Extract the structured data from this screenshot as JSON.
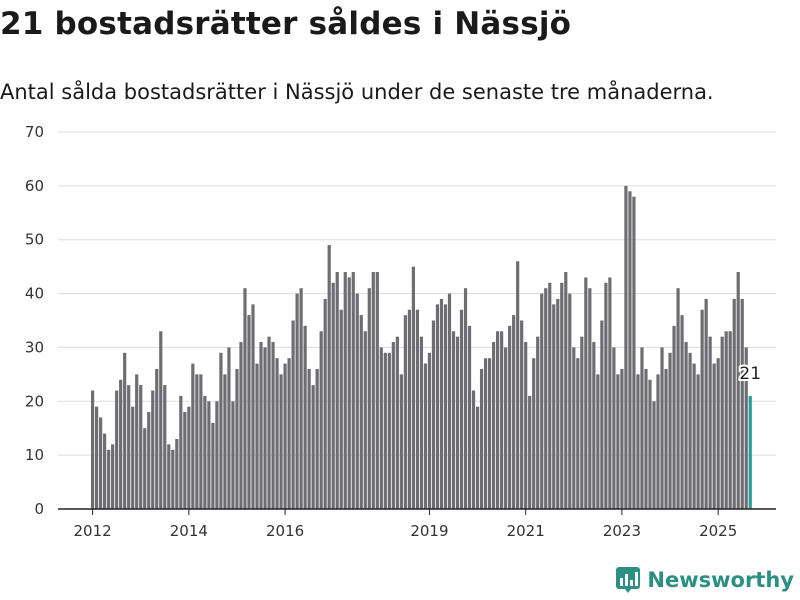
{
  "title": "21 bostadsrätter såldes i Nässjö",
  "subtitle": "Antal sålda bostadsrätter i Nässjö under de senaste tre månaderna.",
  "brand": {
    "name": "Newsworthy",
    "color": "#2d8f83",
    "icon": "newsworthy-logo-icon"
  },
  "chart_data": {
    "type": "bar",
    "start": "2012-01",
    "values": [
      22,
      19,
      17,
      14,
      11,
      12,
      22,
      24,
      29,
      23,
      19,
      25,
      23,
      15,
      18,
      22,
      26,
      33,
      23,
      12,
      11,
      13,
      21,
      18,
      19,
      27,
      25,
      25,
      21,
      20,
      16,
      20,
      29,
      25,
      30,
      20,
      26,
      31,
      41,
      36,
      38,
      27,
      31,
      30,
      32,
      31,
      28,
      25,
      27,
      28,
      35,
      40,
      41,
      34,
      26,
      23,
      26,
      33,
      39,
      49,
      42,
      44,
      37,
      44,
      43,
      44,
      40,
      36,
      33,
      41,
      44,
      44,
      30,
      29,
      29,
      31,
      32,
      25,
      36,
      37,
      45,
      37,
      32,
      27,
      29,
      35,
      38,
      39,
      38,
      40,
      33,
      32,
      37,
      41,
      34,
      22,
      19,
      26,
      28,
      28,
      31,
      33,
      33,
      30,
      34,
      36,
      46,
      35,
      31,
      21,
      28,
      32,
      40,
      41,
      42,
      38,
      39,
      42,
      44,
      40,
      30,
      28,
      32,
      43,
      41,
      31,
      25,
      35,
      42,
      43,
      30,
      25,
      26,
      60,
      59,
      58,
      25,
      30,
      26,
      24,
      20,
      25,
      30,
      26,
      29,
      34,
      41,
      36,
      31,
      29,
      27,
      25,
      37,
      39,
      32,
      27,
      28,
      32,
      33,
      33,
      39,
      44,
      39,
      30,
      21
    ],
    "highlight_last": true,
    "last_label": "21",
    "x_ticks": [
      "2012",
      "2014",
      "2016",
      "2019",
      "2021",
      "2023",
      "2025"
    ],
    "x_tick_years": [
      2012,
      2014,
      2016,
      2019,
      2021,
      2023,
      2025
    ],
    "y_ticks": [
      0,
      10,
      20,
      30,
      40,
      50,
      60,
      70
    ],
    "ylim": [
      0,
      70
    ],
    "grid": true,
    "colors": {
      "bar": "#6e6d72",
      "highlight": "#2a9d92",
      "grid": "#dddddd",
      "axis": "#222222"
    }
  }
}
